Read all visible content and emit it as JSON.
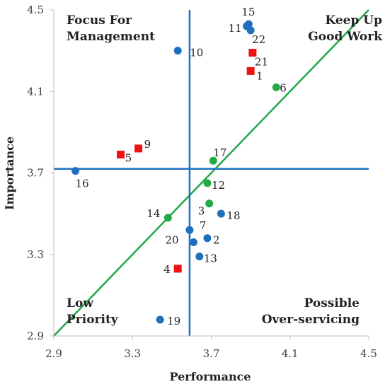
{
  "chart_data": {
    "type": "scatter",
    "xlabel": "Performance",
    "ylabel": "Importance",
    "xlim": [
      2.9,
      4.5
    ],
    "ylim": [
      2.9,
      4.5
    ],
    "x_ticks": [
      "2.9",
      "3.3",
      "3.7",
      "4.1",
      "4.5"
    ],
    "y_ticks": [
      "2.9",
      "3.3",
      "3.7",
      "4.1",
      "4.5"
    ],
    "grid": false,
    "quadrant_labels": {
      "top_left": [
        "Focus For",
        "Management"
      ],
      "top_right": [
        "Keep Up",
        "Good Work"
      ],
      "bottom_left": [
        "Low",
        "Priority"
      ],
      "bottom_right": [
        "Possible",
        "Over-servicing"
      ]
    },
    "reference_lines": {
      "x_mean": 3.59,
      "y_mean": 3.72,
      "color": "#2272c3"
    },
    "diagonal": {
      "from": [
        2.9,
        2.9
      ],
      "to": [
        4.5,
        4.5
      ],
      "color": "#1fa84a"
    },
    "colors": {
      "blue": "#1f6fbf",
      "red": "#ee1111",
      "green": "#22aa44"
    },
    "points": [
      {
        "label": "1",
        "x": 3.9,
        "y": 4.2,
        "color": "red",
        "shape": "square"
      },
      {
        "label": "2",
        "x": 3.68,
        "y": 3.38,
        "color": "blue",
        "shape": "circle"
      },
      {
        "label": "3",
        "x": 3.69,
        "y": 3.55,
        "color": "green",
        "shape": "circle"
      },
      {
        "label": "4",
        "x": 3.53,
        "y": 3.23,
        "color": "red",
        "shape": "square"
      },
      {
        "label": "5",
        "x": 3.24,
        "y": 3.79,
        "color": "red",
        "shape": "square"
      },
      {
        "label": "6",
        "x": 4.03,
        "y": 4.12,
        "color": "green",
        "shape": "circle"
      },
      {
        "label": "7",
        "x": 3.59,
        "y": 3.42,
        "color": "blue",
        "shape": "circle"
      },
      {
        "label": "9",
        "x": 3.33,
        "y": 3.82,
        "color": "red",
        "shape": "square"
      },
      {
        "label": "10",
        "x": 3.53,
        "y": 4.3,
        "color": "blue",
        "shape": "circle"
      },
      {
        "label": "11",
        "x": 3.88,
        "y": 4.42,
        "color": "blue",
        "shape": "circle"
      },
      {
        "label": "12",
        "x": 3.68,
        "y": 3.65,
        "color": "green",
        "shape": "circle"
      },
      {
        "label": "13",
        "x": 3.64,
        "y": 3.29,
        "color": "blue",
        "shape": "circle"
      },
      {
        "label": "14",
        "x": 3.48,
        "y": 3.48,
        "color": "green",
        "shape": "circle"
      },
      {
        "label": "15",
        "x": 3.89,
        "y": 4.43,
        "color": "blue",
        "shape": "circle"
      },
      {
        "label": "16",
        "x": 3.01,
        "y": 3.71,
        "color": "blue",
        "shape": "circle"
      },
      {
        "label": "17",
        "x": 3.71,
        "y": 3.76,
        "color": "green",
        "shape": "circle"
      },
      {
        "label": "18",
        "x": 3.75,
        "y": 3.5,
        "color": "blue",
        "shape": "circle"
      },
      {
        "label": "19",
        "x": 3.44,
        "y": 2.98,
        "color": "blue",
        "shape": "circle"
      },
      {
        "label": "20",
        "x": 3.61,
        "y": 3.36,
        "color": "blue",
        "shape": "circle"
      },
      {
        "label": "21",
        "x": 3.91,
        "y": 4.29,
        "color": "red",
        "shape": "square"
      },
      {
        "label": "22",
        "x": 3.9,
        "y": 4.4,
        "color": "blue",
        "shape": "circle"
      }
    ]
  }
}
